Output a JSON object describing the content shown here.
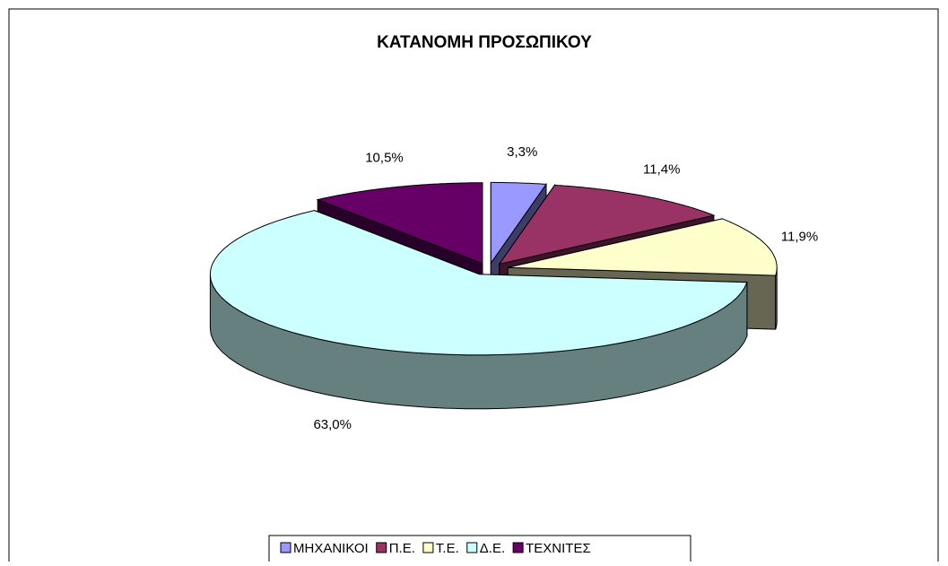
{
  "chart_data": {
    "type": "pie3d",
    "title": "ΚΑΤΑΝΟΜΗ ΠΡΟΣΩΠΙΚΟΥ",
    "categories": [
      "ΜΗΧΑΝΙΚΟΙ",
      "Π.Ε.",
      "Τ.Ε.",
      "Δ.Ε.",
      "ΤΕΧΝΙΤΕΣ"
    ],
    "values": [
      3.3,
      11.4,
      11.9,
      63.0,
      10.5
    ],
    "value_labels": [
      "3,3%",
      "11,4%",
      "11,9%",
      "63,0%",
      "10,5%"
    ],
    "colors": [
      "#9999ff",
      "#993366",
      "#ffffcc",
      "#ccffff",
      "#660066"
    ],
    "legend": "bottom"
  }
}
